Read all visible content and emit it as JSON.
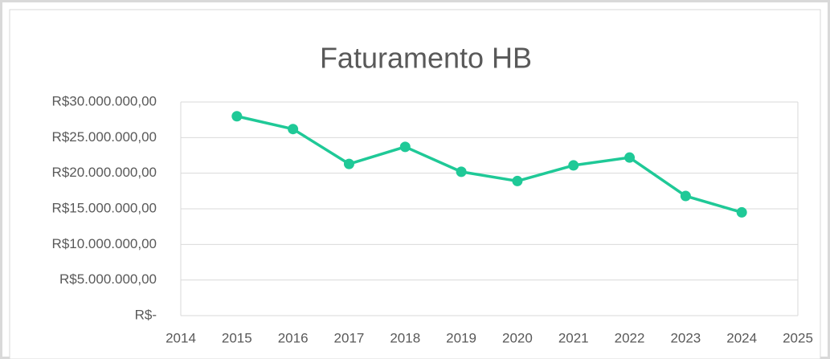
{
  "chart_data": {
    "type": "line",
    "title": "Faturamento HB",
    "x": [
      2015,
      2016,
      2017,
      2018,
      2019,
      2020,
      2021,
      2022,
      2023,
      2024
    ],
    "values": [
      28000000,
      26200000,
      21300000,
      23700000,
      20200000,
      18900000,
      21100000,
      22200000,
      16800000,
      14500000
    ],
    "color": "#1fc997",
    "xlim": [
      2014,
      2025
    ],
    "xticks": [
      2014,
      2015,
      2016,
      2017,
      2018,
      2019,
      2020,
      2021,
      2022,
      2023,
      2024,
      2025
    ],
    "ylim": [
      0,
      30000000
    ],
    "yticks": [
      {
        "value": 0,
        "label": "R$-"
      },
      {
        "value": 5000000,
        "label": "R$5.000.000,00"
      },
      {
        "value": 10000000,
        "label": "R$10.000.000,00"
      },
      {
        "value": 15000000,
        "label": "R$15.000.000,00"
      },
      {
        "value": 20000000,
        "label": "R$20.000.000,00"
      },
      {
        "value": 25000000,
        "label": "R$25.000.000,00"
      },
      {
        "value": 30000000,
        "label": "R$30.000.000,00"
      }
    ],
    "grid": true
  }
}
